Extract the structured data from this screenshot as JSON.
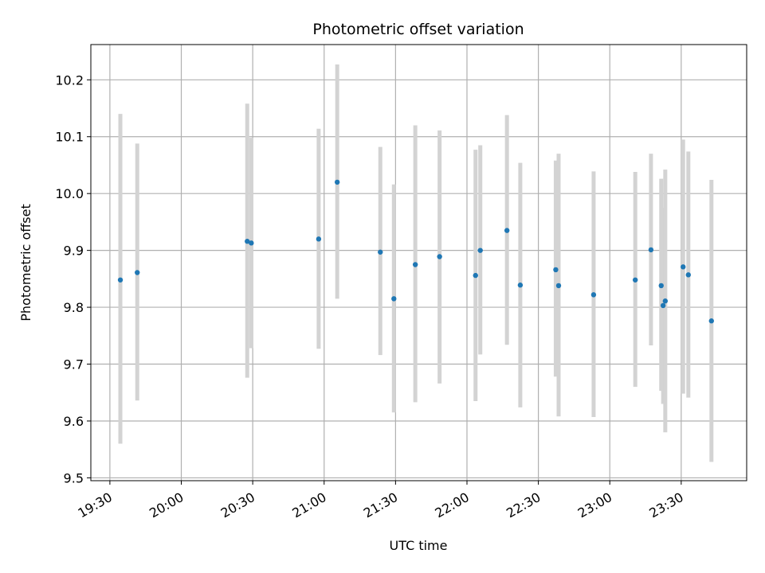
{
  "chart_data": {
    "type": "scatter",
    "title": "Photometric offset variation",
    "xlabel": "UTC time",
    "ylabel": "Photometric offset",
    "x_tick_labels": [
      "19:30",
      "20:00",
      "20:30",
      "21:00",
      "21:30",
      "22:00",
      "22:30",
      "23:00",
      "23:30"
    ],
    "x_ticks_min": [
      1170,
      1200,
      1230,
      1260,
      1290,
      1320,
      1350,
      1380,
      1410
    ],
    "xlim_min": [
      1162,
      1437.5
    ],
    "ylim": [
      9.495,
      10.262
    ],
    "y_ticks": [
      9.5,
      9.6,
      9.7,
      9.8,
      9.9,
      10.0,
      10.1,
      10.2
    ],
    "y_tick_labels": [
      "9.5",
      "9.6",
      "9.7",
      "9.8",
      "9.9",
      "10.0",
      "10.1",
      "10.2"
    ],
    "grid": true,
    "point_color": "#1f77b4",
    "errorbar_color": "#d3d3d3",
    "points": [
      {
        "t": "19:34",
        "x": 1174.4,
        "y": 9.848,
        "lo": 9.56,
        "hi": 10.14
      },
      {
        "t": "19:41",
        "x": 1181.5,
        "y": 9.861,
        "lo": 9.636,
        "hi": 10.088
      },
      {
        "t": "20:27",
        "x": 1227.7,
        "y": 9.916,
        "lo": 9.676,
        "hi": 10.158
      },
      {
        "t": "20:29",
        "x": 1229.4,
        "y": 9.913,
        "lo": 9.728,
        "hi": 10.098
      },
      {
        "t": "20:58",
        "x": 1257.7,
        "y": 9.92,
        "lo": 9.727,
        "hi": 10.114
      },
      {
        "t": "21:05",
        "x": 1265.5,
        "y": 10.02,
        "lo": 9.815,
        "hi": 10.227
      },
      {
        "t": "21:23",
        "x": 1283.6,
        "y": 9.897,
        "lo": 9.716,
        "hi": 10.082
      },
      {
        "t": "21:29",
        "x": 1289.3,
        "y": 9.815,
        "lo": 9.615,
        "hi": 10.016
      },
      {
        "t": "21:38",
        "x": 1298.3,
        "y": 9.875,
        "lo": 9.633,
        "hi": 10.12
      },
      {
        "t": "21:48",
        "x": 1308.5,
        "y": 9.889,
        "lo": 9.666,
        "hi": 10.111
      },
      {
        "t": "22:04",
        "x": 1323.6,
        "y": 9.856,
        "lo": 9.635,
        "hi": 10.077
      },
      {
        "t": "22:06",
        "x": 1325.6,
        "y": 9.9,
        "lo": 9.717,
        "hi": 10.085
      },
      {
        "t": "22:17",
        "x": 1336.8,
        "y": 9.935,
        "lo": 9.734,
        "hi": 10.138
      },
      {
        "t": "22:22",
        "x": 1342.4,
        "y": 9.839,
        "lo": 9.624,
        "hi": 10.054
      },
      {
        "t": "22:37",
        "x": 1357.3,
        "y": 9.866,
        "lo": 9.678,
        "hi": 10.058
      },
      {
        "t": "22:38",
        "x": 1358.5,
        "y": 9.838,
        "lo": 9.608,
        "hi": 10.07
      },
      {
        "t": "22:53",
        "x": 1373.2,
        "y": 9.822,
        "lo": 9.607,
        "hi": 10.039
      },
      {
        "t": "23:10",
        "x": 1390.7,
        "y": 9.848,
        "lo": 9.66,
        "hi": 10.038
      },
      {
        "t": "23:17",
        "x": 1397.3,
        "y": 9.901,
        "lo": 9.733,
        "hi": 10.07
      },
      {
        "t": "23:21",
        "x": 1401.6,
        "y": 9.838,
        "lo": 9.653,
        "hi": 10.026
      },
      {
        "t": "23:22",
        "x": 1402.4,
        "y": 9.803,
        "lo": 9.63,
        "hi": 9.975
      },
      {
        "t": "23:23",
        "x": 1403.3,
        "y": 9.811,
        "lo": 9.58,
        "hi": 10.042
      },
      {
        "t": "23:30",
        "x": 1410.8,
        "y": 9.871,
        "lo": 9.648,
        "hi": 10.095
      },
      {
        "t": "23:33",
        "x": 1413.0,
        "y": 9.857,
        "lo": 9.641,
        "hi": 10.074
      },
      {
        "t": "23:43",
        "x": 1422.7,
        "y": 9.776,
        "lo": 9.528,
        "hi": 10.024
      }
    ]
  }
}
